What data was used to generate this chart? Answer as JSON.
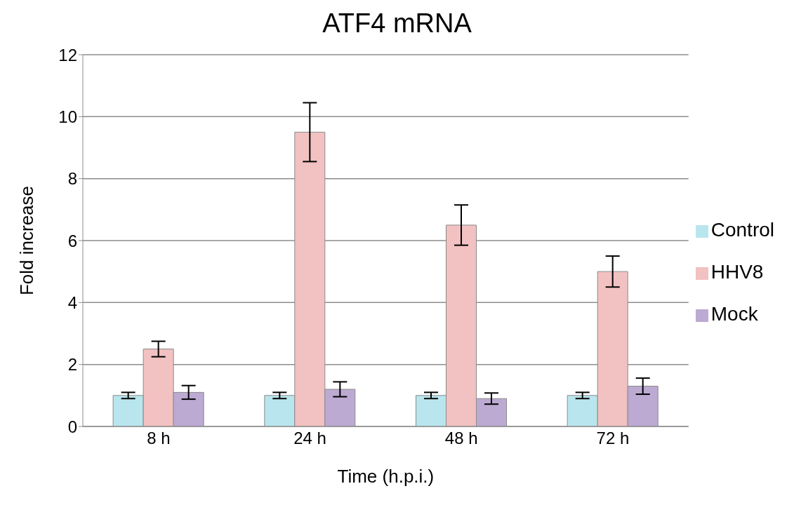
{
  "chart_data": {
    "type": "bar",
    "title": "ATF4 mRNA",
    "xlabel": "Time (h.p.i.)",
    "ylabel": "Fold increase",
    "categories": [
      "8 h",
      "24 h",
      "48 h",
      "72 h"
    ],
    "series": [
      {
        "name": "Control",
        "color": "#b9e6ee",
        "values": [
          1.0,
          1.0,
          1.0,
          1.0
        ],
        "errors": [
          0.1,
          0.1,
          0.1,
          0.1
        ]
      },
      {
        "name": "HHV8",
        "color": "#f2c1c1",
        "values": [
          2.5,
          9.5,
          6.5,
          5.0
        ],
        "errors": [
          0.25,
          0.95,
          0.65,
          0.5
        ]
      },
      {
        "name": "Mock",
        "color": "#bcaad3",
        "values": [
          1.1,
          1.2,
          0.9,
          1.3
        ],
        "errors": [
          0.22,
          0.24,
          0.18,
          0.26
        ]
      }
    ],
    "ylim": [
      0,
      12
    ],
    "yticks": [
      0,
      2,
      4,
      6,
      8,
      10,
      12
    ],
    "grid": "y",
    "legend": "right"
  }
}
